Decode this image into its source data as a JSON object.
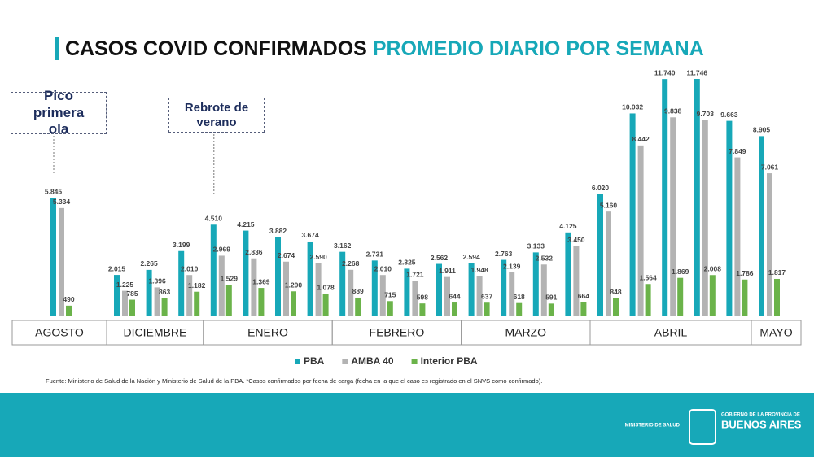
{
  "chart_data": {
    "type": "bar",
    "title": "CASOS COVID CONFIRMADOS",
    "subtitle": "PROMEDIO DIARIO POR SEMANA",
    "categories": [
      null,
      null,
      null,
      null,
      null,
      null,
      null,
      null,
      null,
      null,
      null,
      null,
      null,
      null,
      null,
      null,
      null,
      null,
      null,
      null,
      null,
      null
    ],
    "month_groups": [
      {
        "label": "AGOSTO",
        "count": 1
      },
      {
        "label": "DICIEMBRE",
        "count": 3
      },
      {
        "label": "ENERO",
        "count": 4
      },
      {
        "label": "FEBRERO",
        "count": 4
      },
      {
        "label": "MARZO",
        "count": 4
      },
      {
        "label": "ABRIL",
        "count": 5
      },
      {
        "label": "MAYO",
        "count": 1
      }
    ],
    "series": [
      {
        "name": "PBA",
        "color": "#17a8b8",
        "values": [
          5845,
          2015,
          2265,
          3199,
          4510,
          4215,
          3882,
          3674,
          3162,
          2731,
          2325,
          2562,
          2594,
          2763,
          3133,
          4125,
          6020,
          10032,
          11740,
          11746,
          9663,
          8905
        ],
        "value_labels": [
          "5.845",
          "2.015",
          "2.265",
          "3.199",
          "4.510",
          "4.215",
          "3.882",
          "3.674",
          "3.162",
          "2.731",
          "2.325",
          "2.562",
          "2.594",
          "2.763",
          "3.133",
          "4.125",
          "6.020",
          "10.032",
          "11.740",
          "11.746",
          "9.663",
          "8.905"
        ]
      },
      {
        "name": "AMBA 40",
        "color": "#b3b3b3",
        "values": [
          5334,
          1225,
          1396,
          2010,
          2969,
          2836,
          2674,
          2590,
          2268,
          2010,
          1721,
          1911,
          1948,
          2139,
          2532,
          3450,
          5160,
          8442,
          9838,
          9703,
          7849,
          7061
        ],
        "value_labels": [
          "5.334",
          "1.225",
          "1.396",
          "2.010",
          "2.969",
          "2.836",
          "2.674",
          "2.590",
          "2.268",
          "2.010",
          "1.721",
          "1.911",
          "1.948",
          "2.139",
          "2.532",
          "3.450",
          "5.160",
          "8.442",
          "9.838",
          "9.703",
          "7.849",
          "7.061"
        ]
      },
      {
        "name": "Interior PBA",
        "color": "#6bb34a",
        "values": [
          490,
          785,
          863,
          1182,
          1529,
          1369,
          1200,
          1078,
          889,
          715,
          598,
          644,
          637,
          618,
          591,
          664,
          848,
          1564,
          1869,
          2008,
          1786,
          1817
        ],
        "value_labels": [
          "490",
          "785",
          "863",
          "1.182",
          "1.529",
          "1.369",
          "1.200",
          "1.078",
          "889",
          "715",
          "598",
          "644",
          "637",
          "618",
          "591",
          "664",
          "848",
          "1.564",
          "1.869",
          "2.008",
          "1.786",
          "1.817"
        ]
      }
    ],
    "annotations": [
      {
        "text": "Pico primera ola",
        "week": 0
      },
      {
        "text": "Rebrote de verano",
        "week": 4
      }
    ],
    "legend": "bottom",
    "source": "Fuente: Ministerio de Salud de la Nación y Ministerio de Salud de la PBA. *Casos confirmados por fecha de carga (fecha en la que el caso es registrado en el SNVS como confirmado)."
  },
  "footer": {
    "ministry": "MINISTERIO DE SALUD",
    "government": "GOBIERNO DE LA PROVINCIA DE",
    "province": "BUENOS AIRES"
  }
}
